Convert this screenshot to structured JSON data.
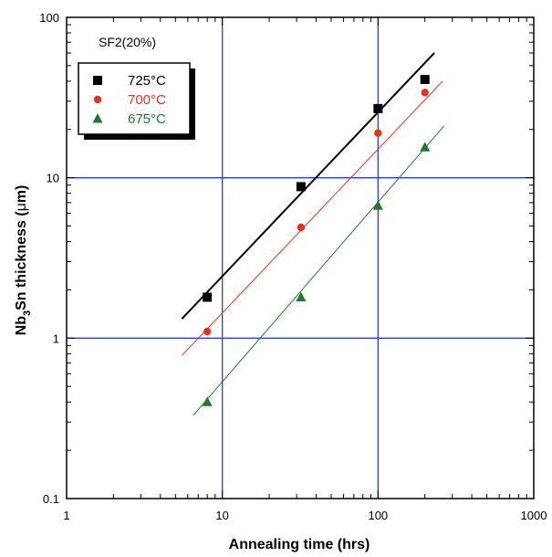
{
  "chart_data": {
    "type": "scatter",
    "xscale": "log",
    "yscale": "log",
    "xlim": [
      1,
      1000
    ],
    "ylim": [
      0.1,
      100
    ],
    "x_ticks": [
      "1",
      "10",
      "100",
      "1000"
    ],
    "y_ticks": [
      "0.1",
      "1",
      "10",
      "100"
    ],
    "xlabel": "Annealing time (hrs)",
    "ylabel_parts": [
      "Nb",
      "3",
      "Sn thickness (",
      "μ",
      "m)"
    ],
    "annotation": "SF2(20%)",
    "grid": true,
    "legend_position": "top-left",
    "series": [
      {
        "name": "725°C",
        "marker": "square",
        "color": "#000000",
        "points": [
          [
            8,
            1.8
          ],
          [
            32,
            8.8
          ],
          [
            100,
            27
          ],
          [
            200,
            41
          ]
        ],
        "fit": [
          [
            5.5,
            1.32
          ],
          [
            230,
            60
          ]
        ]
      },
      {
        "name": "700°C",
        "marker": "circle",
        "color": "#e8321c",
        "points": [
          [
            8,
            1.1
          ],
          [
            32,
            4.9
          ],
          [
            100,
            19
          ],
          [
            200,
            34
          ]
        ],
        "fit": [
          [
            5.5,
            0.78
          ],
          [
            260,
            40
          ]
        ]
      },
      {
        "name": "675°C",
        "marker": "triangle",
        "color": "#1f7a2e",
        "points": [
          [
            8,
            0.4
          ],
          [
            32,
            1.8
          ],
          [
            100,
            6.7
          ],
          [
            200,
            15.5
          ]
        ],
        "fit": [
          [
            6.5,
            0.33
          ],
          [
            265,
            21
          ]
        ]
      }
    ]
  }
}
